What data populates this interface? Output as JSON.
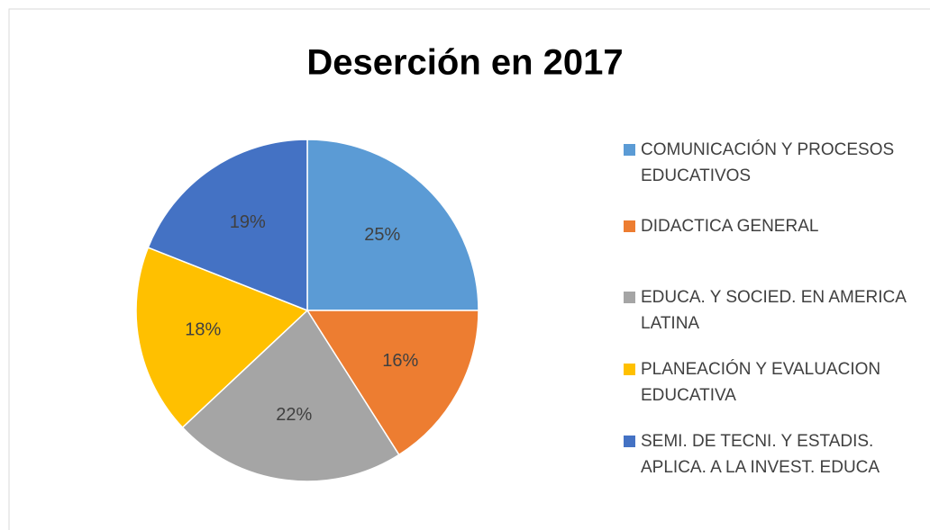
{
  "chart_data": {
    "type": "pie",
    "title": "Deserción en 2017",
    "categories": [
      "COMUNICACIÓN Y PROCESOS EDUCATIVOS",
      "DIDACTICA GENERAL",
      "EDUCA. Y SOCIED. EN AMERICA LATINA",
      "PLANEACIÓN Y EVALUACION EDUCATIVA",
      "SEMI. DE TECNI. Y ESTADIS. APLICA. A LA INVEST. EDUCA"
    ],
    "values": [
      25,
      16,
      22,
      18,
      19
    ],
    "value_labels": [
      "25%",
      "16%",
      "22%",
      "18%",
      "19%"
    ],
    "colors": [
      "#5b9bd5",
      "#ed7d31",
      "#a5a5a5",
      "#ffc000",
      "#4472c4"
    ],
    "legend": "right"
  }
}
